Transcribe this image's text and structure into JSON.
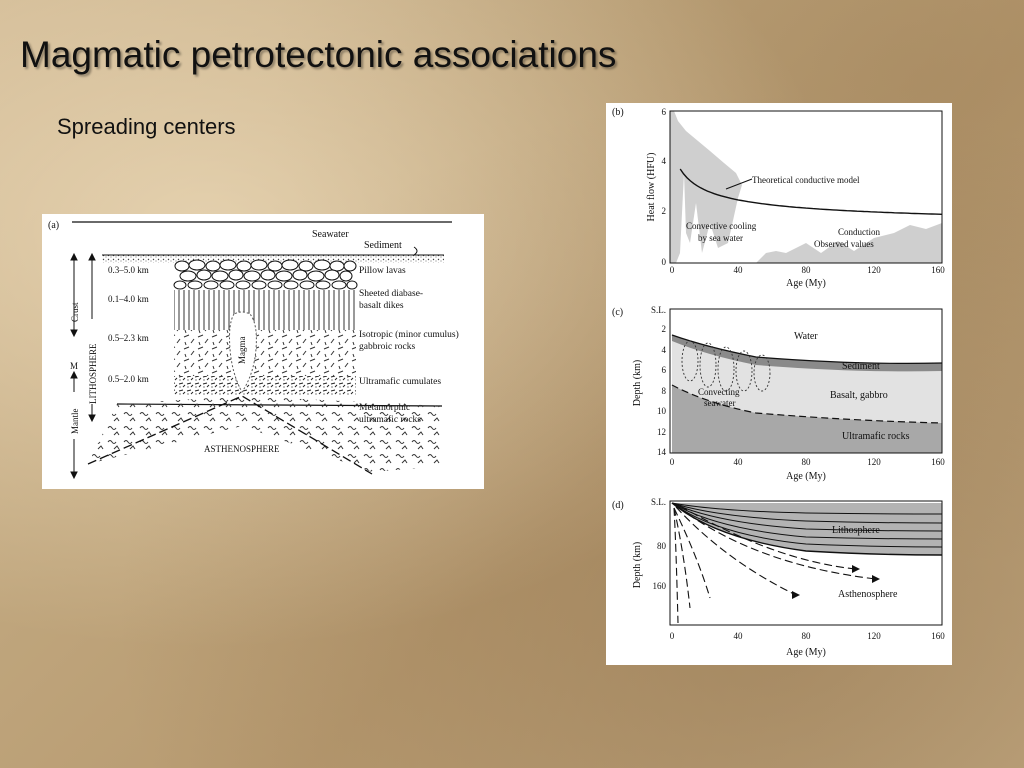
{
  "slide": {
    "title": "Magmatic petrotectonic associations",
    "subtitle": "Spreading centers"
  },
  "panel_a": {
    "tag": "(a)",
    "seawater": "Seawater",
    "sediment": "Sediment",
    "thicknesses": [
      "0.3–5.0 km",
      "0.1–4.0 km",
      "0.5–2.3 km",
      "0.5–2.0 km"
    ],
    "layers": [
      "Pillow lavas",
      "Sheeted diabase-",
      "basalt dikes",
      "Isotropic (minor cumulus)",
      "gabbroic rocks",
      "Ultramafic cumulates",
      "Metamorphic",
      "ultramafic rocks"
    ],
    "magma": "Magma",
    "asthenosphere": "ASTHENOSPHERE",
    "crust": "Crust",
    "m": "M",
    "lithosphere": "LITHOSPHERE",
    "mantle": "Mantle"
  },
  "panel_b": {
    "tag": "(b)",
    "ylabel": "Heat flow (HFU)",
    "xlabel": "Age (My)",
    "yticks": [
      "6",
      "4",
      "2",
      "0"
    ],
    "xticks": [
      "0",
      "40",
      "80",
      "120",
      "160"
    ],
    "label_model": "Theoretical conductive model",
    "label_convective_1": "Convective cooling",
    "label_convective_2": "by sea water",
    "label_conduction": "Conduction",
    "label_observed": "Observed values"
  },
  "panel_c": {
    "tag": "(c)",
    "sl": "S.L.",
    "ylabel": "Depth (km)",
    "xlabel": "Age (My)",
    "yticks": [
      "2",
      "4",
      "6",
      "8",
      "10",
      "12",
      "14"
    ],
    "xticks": [
      "0",
      "40",
      "80",
      "120",
      "160"
    ],
    "water": "Water",
    "sediment": "Sediment",
    "convecting_1": "Convecting",
    "convecting_2": "seawater",
    "basalt": "Basalt, gabbro",
    "ultramafic": "Ultramafic rocks"
  },
  "panel_d": {
    "tag": "(d)",
    "sl": "S.L.",
    "ylabel": "Depth (km)",
    "xlabel": "Age (My)",
    "yticks": [
      "80",
      "160"
    ],
    "xticks": [
      "0",
      "40",
      "80",
      "120",
      "160"
    ],
    "lithosphere": "Lithosphere",
    "asthenosphere": "Asthenosphere"
  }
}
